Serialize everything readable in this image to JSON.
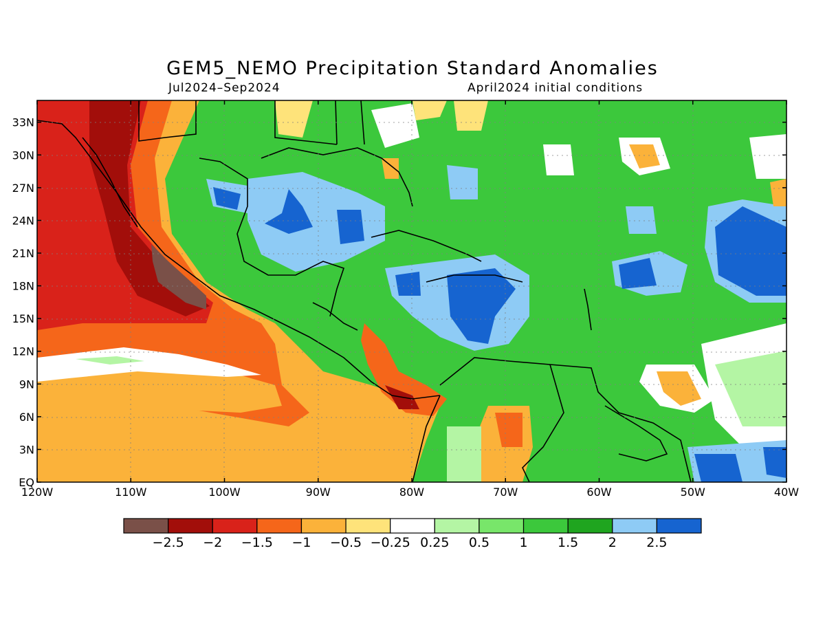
{
  "title": "GEM5_NEMO Precipitation Standard Anomalies",
  "period": "Jul2024–Sep2024",
  "initial_conditions": "April2024 initial conditions",
  "axes": {
    "lat_labels": [
      "EQ",
      "3N",
      "6N",
      "9N",
      "12N",
      "15N",
      "18N",
      "21N",
      "24N",
      "27N",
      "30N",
      "33N"
    ],
    "lat_values": [
      0,
      3,
      6,
      9,
      12,
      15,
      18,
      21,
      24,
      27,
      30,
      33
    ],
    "lon_labels": [
      "120W",
      "110W",
      "100W",
      "90W",
      "80W",
      "70W",
      "60W",
      "50W",
      "40W"
    ],
    "lon_values": [
      -120,
      -110,
      -100,
      -90,
      -80,
      -70,
      -60,
      -50,
      -40
    ],
    "lon_range": [
      -120,
      -40
    ],
    "lat_range": [
      0,
      35
    ]
  },
  "colorbar": {
    "colors": [
      "#7a5048",
      "#a20e0a",
      "#d9221a",
      "#f5661a",
      "#fbb23a",
      "#fee37a",
      "#ffffff",
      "#b4f5a4",
      "#78e66a",
      "#3cc83c",
      "#1fa51f",
      "#8ecbf5",
      "#1664d0"
    ],
    "labels": [
      "−2.5",
      "−2",
      "−1.5",
      "−1",
      "−0.5",
      "−0.25",
      "0.25",
      "0.5",
      "1",
      "1.5",
      "2",
      "2.5"
    ]
  }
}
